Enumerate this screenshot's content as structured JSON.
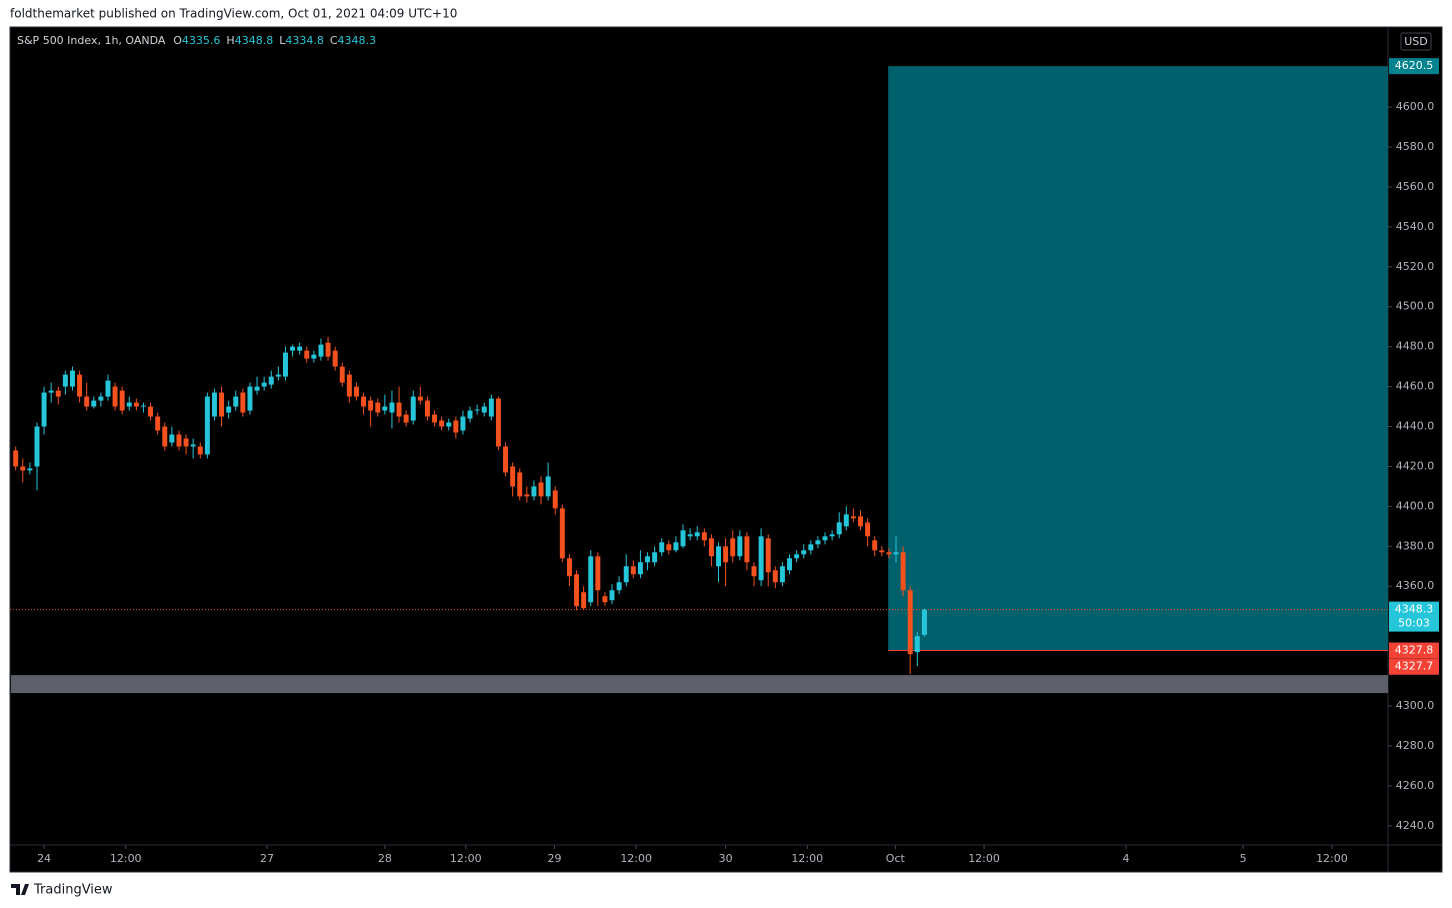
{
  "header": "foldthemarket published on TradingView.com, Oct 01, 2021 04:09 UTC+10",
  "footer": "TradingView",
  "chart_data": {
    "type": "candlestick",
    "title": "S&P 500 Index, 1h, OANDA",
    "ohlc_labels": [
      "O",
      "H",
      "L",
      "C"
    ],
    "currency": "USD",
    "up_color": "#26c6da",
    "down_color": "#f4511e",
    "xlim": [
      -4.8,
      189.3
    ],
    "xticks": [
      {
        "value": 0,
        "label": "24"
      },
      {
        "value": 11.5,
        "label": "12:00"
      },
      {
        "value": 31.4,
        "label": "27"
      },
      {
        "value": 48,
        "label": "28"
      },
      {
        "value": 59.4,
        "label": "12:00"
      },
      {
        "value": 71.9,
        "label": "29"
      },
      {
        "value": 83.4,
        "label": "12:00"
      },
      {
        "value": 96,
        "label": "30"
      },
      {
        "value": 107.5,
        "label": "12:00"
      },
      {
        "value": 119.9,
        "label": "Oct"
      },
      {
        "value": 132.4,
        "label": "12:00"
      },
      {
        "value": 152.4,
        "label": "4"
      },
      {
        "value": 168.9,
        "label": "5"
      },
      {
        "value": 181.4,
        "label": "12:00"
      }
    ],
    "ylim": [
      4230.4,
      4640.1
    ],
    "yticks": [
      {
        "value": 4240,
        "label": "4240.0"
      },
      {
        "value": 4260,
        "label": "4260.0"
      },
      {
        "value": 4280,
        "label": "4280.0"
      },
      {
        "value": 4300,
        "label": "4300.0"
      },
      {
        "value": 4320,
        "label": "4320.0"
      },
      {
        "value": 4340,
        "label": "4340.0"
      },
      {
        "value": 4360,
        "label": "4360.0"
      },
      {
        "value": 4380,
        "label": "4380.0"
      },
      {
        "value": 4400,
        "label": "4400.0"
      },
      {
        "value": 4420,
        "label": "4420.0"
      },
      {
        "value": 4440,
        "label": "4440.0"
      },
      {
        "value": 4460,
        "label": "4460.0"
      },
      {
        "value": 4480,
        "label": "4480.0"
      },
      {
        "value": 4500,
        "label": "4500.0"
      },
      {
        "value": 4520,
        "label": "4520.0"
      },
      {
        "value": 4540,
        "label": "4540.0"
      },
      {
        "value": 4560,
        "label": "4560.0"
      },
      {
        "value": 4580,
        "label": "4580.0"
      },
      {
        "value": 4600,
        "label": "4600.0"
      }
    ],
    "x": [
      -4,
      -3,
      -2,
      -1,
      0,
      1,
      2,
      3,
      4,
      5,
      6,
      7,
      8,
      9,
      10,
      11,
      12,
      13,
      14,
      15,
      16,
      17,
      18,
      19,
      20,
      21,
      22,
      23,
      24,
      25,
      26,
      27,
      28,
      29,
      30,
      31,
      32,
      33,
      34,
      35,
      36,
      37,
      38,
      39,
      40,
      41,
      42,
      43,
      44,
      45,
      46,
      47,
      48,
      49,
      50,
      51,
      52,
      53,
      54,
      55,
      56,
      57,
      58,
      59,
      60,
      61,
      62,
      63,
      64,
      65,
      66,
      67,
      68,
      69,
      70,
      71,
      72,
      73,
      74,
      75,
      76,
      77,
      78,
      79,
      80,
      81,
      82,
      83,
      84,
      85,
      86,
      87,
      88,
      89,
      90,
      91,
      92,
      93,
      94,
      95,
      96,
      97,
      98,
      99,
      100,
      101,
      102,
      103,
      104,
      105,
      106,
      107,
      108,
      109,
      110,
      111,
      112,
      113,
      114,
      115,
      116,
      117,
      118,
      119,
      120,
      121,
      122,
      123,
      124
    ],
    "open": [
      4428,
      4420,
      4418,
      4420,
      4440,
      4457,
      4458,
      4460,
      4460,
      4466,
      4455,
      4450,
      4453,
      4455,
      4460,
      4458,
      4450,
      4452,
      4450,
      4450,
      4445,
      4440,
      4432,
      4436,
      4434,
      4430,
      4430,
      4426,
      4445,
      4457,
      4447,
      4450,
      4457,
      4448,
      4458,
      4460,
      4461,
      4465,
      4465,
      4478,
      4478,
      4478,
      4474,
      4475,
      4482,
      4478,
      4470,
      4466,
      4460,
      4455,
      4453,
      4452,
      4448,
      4447,
      4452,
      4446,
      4443,
      4455,
      4453,
      4446,
      4443,
      4440,
      4443,
      4438,
      4444,
      4448,
      4447,
      4445,
      4454,
      4430,
      4420,
      4417,
      4406,
      4405,
      4412,
      4405,
      4408,
      4399,
      4374,
      4366,
      4357,
      4352,
      4375,
      4355,
      4353,
      4358,
      4362,
      4370,
      4366,
      4372,
      4372,
      4377,
      4381,
      4378,
      4380,
      4385,
      4385,
      4387,
      4384,
      4370,
      4380,
      4384,
      4375,
      4385,
      4370,
      4363,
      4384,
      4368,
      4362,
      4368,
      4374,
      4376,
      4378,
      4381,
      4383,
      4385,
      4386,
      4390,
      4395,
      4395,
      4392,
      4383,
      4378,
      4377,
      4376,
      4377,
      4358,
      4327,
      4335.6
    ],
    "high": [
      4430,
      4424,
      4422,
      4442,
      4460,
      4462,
      4460,
      4468,
      4470,
      4468,
      4462,
      4455,
      4457,
      4466,
      4462,
      4460,
      4455,
      4454,
      4452,
      4452,
      4447,
      4442,
      4440,
      4438,
      4436,
      4434,
      4432,
      4457,
      4459,
      4460,
      4453,
      4458,
      4459,
      4462,
      4465,
      4465,
      4468,
      4470,
      4480,
      4481,
      4482,
      4480,
      4478,
      4484,
      4485,
      4480,
      4472,
      4468,
      4462,
      4457,
      4455,
      4454,
      4456,
      4458,
      4460,
      4448,
      4458,
      4460,
      4455,
      4448,
      4445,
      4444,
      4445,
      4448,
      4450,
      4451,
      4452,
      4456,
      4455,
      4432,
      4422,
      4419,
      4410,
      4413,
      4415,
      4422,
      4410,
      4401,
      4376,
      4368,
      4360,
      4378,
      4377,
      4357,
      4361,
      4365,
      4376,
      4373,
      4378,
      4377,
      4380,
      4384,
      4383,
      4385,
      4391,
      4389,
      4390,
      4389,
      4386,
      4382,
      4384,
      4388,
      4388,
      4387,
      4372,
      4389,
      4386,
      4370,
      4372,
      4376,
      4378,
      4381,
      4383,
      4385,
      4387,
      4388,
      4397,
      4400,
      4399,
      4398,
      4394,
      4385,
      4380,
      4379,
      4385,
      4380,
      4360,
      4337,
      4348.8
    ],
    "low": [
      4418,
      4412,
      4416,
      4408,
      4436,
      4452,
      4451,
      4456,
      4458,
      4452,
      4448,
      4449,
      4450,
      4453,
      4448,
      4446,
      4448,
      4448,
      4447,
      4443,
      4436,
      4428,
      4430,
      4428,
      4426,
      4424,
      4424,
      4424,
      4443,
      4440,
      4444,
      4448,
      4445,
      4446,
      4456,
      4458,
      4459,
      4463,
      4463,
      4475,
      4476,
      4472,
      4472,
      4473,
      4473,
      4468,
      4460,
      4452,
      4453,
      4446,
      4440,
      4445,
      4446,
      4439,
      4442,
      4440,
      4441,
      4451,
      4443,
      4440,
      4438,
      4438,
      4434,
      4436,
      4442,
      4446,
      4445,
      4443,
      4428,
      4415,
      4405,
      4403,
      4402,
      4403,
      4401,
      4403,
      4396,
      4372,
      4360,
      4348,
      4348,
      4350,
      4350,
      4350,
      4351,
      4356,
      4360,
      4364,
      4364,
      4368,
      4370,
      4375,
      4376,
      4377,
      4379,
      4383,
      4383,
      4380,
      4370,
      4362,
      4360,
      4372,
      4373,
      4368,
      4360,
      4360,
      4360,
      4359,
      4360,
      4366,
      4372,
      4374,
      4376,
      4379,
      4381,
      4383,
      4384,
      4388,
      4392,
      4388,
      4380,
      4375,
      4375,
      4374,
      4372,
      4355,
      4316,
      4320,
      4334.8
    ],
    "close": [
      4420,
      4418,
      4419,
      4440,
      4457,
      4458,
      4455,
      4466,
      4468,
      4455,
      4450,
      4453,
      4455,
      4463,
      4450,
      4448,
      4452,
      4450,
      4450.5,
      4445,
      4438,
      4430,
      4436,
      4430,
      4430,
      4431,
      4426,
      4455,
      4457,
      4445,
      4450,
      4455,
      4447,
      4460,
      4460,
      4462,
      4465,
      4466,
      4477,
      4480,
      4480,
      4474,
      4476,
      4481,
      4475,
      4470,
      4462,
      4455,
      4455,
      4450,
      4448,
      4447,
      4450,
      4452,
      4445,
      4442,
      4455,
      4453,
      4445,
      4442,
      4440,
      4442,
      4437,
      4445,
      4448,
      4448.5,
      4450,
      4454,
      4430,
      4417,
      4410,
      4405,
      4405,
      4410,
      4405,
      4415,
      4399,
      4374,
      4365,
      4350,
      4349,
      4375,
      4358,
      4352,
      4358,
      4362,
      4370,
      4366,
      4372,
      4375,
      4377,
      4382,
      4378,
      4382,
      4388,
      4386,
      4387,
      4383,
      4375,
      4380,
      4372,
      4375,
      4385,
      4372,
      4365,
      4385,
      4367,
      4362,
      4370,
      4374,
      4376,
      4378,
      4381,
      4383,
      4385,
      4386,
      4392,
      4396,
      4394,
      4390,
      4385,
      4378,
      4377,
      4376,
      4377,
      4358,
      4326,
      4335,
      4348.3
    ],
    "countdown": "50:03",
    "target_zone": {
      "top": 4620.5,
      "bottom": 4327.8,
      "x_start": 118.9,
      "color": "#00616c",
      "label_color": "#00838f"
    },
    "level": 4327.7,
    "level_color": "#f44336",
    "support_zone": {
      "low": 4306.5,
      "high": 4315.5,
      "color": "#5d606b"
    }
  }
}
